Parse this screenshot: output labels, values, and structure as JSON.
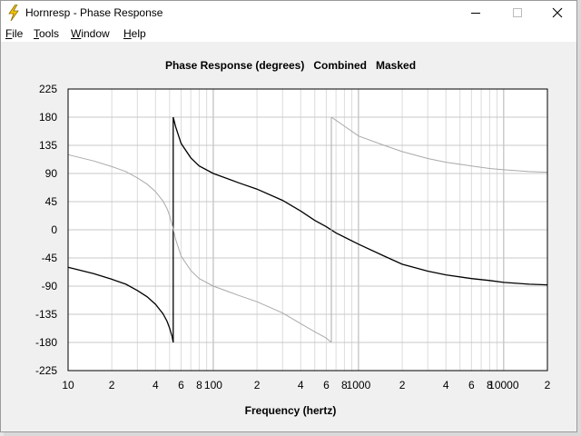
{
  "window": {
    "title": "Hornresp - Phase Response",
    "controls": [
      "minimize",
      "maximize",
      "close"
    ]
  },
  "menu": [
    {
      "label_ul": "F",
      "label_rest": "ile"
    },
    {
      "label_ul": "T",
      "label_rest": "ools"
    },
    {
      "label_ul": "W",
      "label_rest": "indow"
    },
    {
      "label_ul": "H",
      "label_rest": "elp"
    }
  ],
  "chart": {
    "title": "Phase Response (degrees)   Combined   Masked",
    "xlabel": "Frequency (hertz)"
  },
  "chart_data": {
    "type": "line",
    "title": "Phase Response (degrees)   Combined   Masked",
    "xlabel": "Frequency (hertz)",
    "ylabel": "",
    "x_scale": "log",
    "xlim": [
      10,
      20000
    ],
    "ylim": [
      -225,
      225
    ],
    "grid": true,
    "x_tick_labels": [
      {
        "value": 10,
        "label": "10"
      },
      {
        "value": 20,
        "label": "2"
      },
      {
        "value": 40,
        "label": "4"
      },
      {
        "value": 60,
        "label": "6"
      },
      {
        "value": 80,
        "label": "8"
      },
      {
        "value": 100,
        "label": "100"
      },
      {
        "value": 200,
        "label": "2"
      },
      {
        "value": 400,
        "label": "4"
      },
      {
        "value": 600,
        "label": "6"
      },
      {
        "value": 800,
        "label": "8"
      },
      {
        "value": 1000,
        "label": "1000"
      },
      {
        "value": 2000,
        "label": "2"
      },
      {
        "value": 4000,
        "label": "4"
      },
      {
        "value": 6000,
        "label": "6"
      },
      {
        "value": 8000,
        "label": "8"
      },
      {
        "value": 10000,
        "label": "10000"
      },
      {
        "value": 20000,
        "label": "2"
      }
    ],
    "y_ticks": [
      225,
      180,
      135,
      90,
      45,
      0,
      -45,
      -90,
      -135,
      -180,
      -225
    ],
    "series": [
      {
        "color": "#000000",
        "segments": [
          [
            [
              10,
              -60
            ],
            [
              15,
              -70
            ],
            [
              20,
              -79
            ],
            [
              25,
              -87
            ],
            [
              30,
              -97
            ],
            [
              35,
              -107
            ],
            [
              40,
              -119
            ],
            [
              45,
              -134
            ],
            [
              48,
              -146
            ],
            [
              50,
              -157
            ],
            [
              52,
              -170
            ],
            [
              53,
              -180
            ]
          ],
          [
            [
              53,
              -180
            ],
            [
              53,
              180
            ]
          ],
          [
            [
              53,
              180
            ],
            [
              55,
              165
            ],
            [
              60,
              138
            ],
            [
              70,
              115
            ],
            [
              80,
              102
            ],
            [
              100,
              90
            ],
            [
              150,
              75
            ],
            [
              200,
              65
            ],
            [
              300,
              47
            ],
            [
              400,
              30
            ],
            [
              500,
              15
            ],
            [
              600,
              5
            ],
            [
              700,
              -5
            ],
            [
              1000,
              -23
            ],
            [
              1500,
              -42
            ],
            [
              2000,
              -55
            ],
            [
              3000,
              -66
            ],
            [
              4000,
              -72
            ],
            [
              6000,
              -78
            ],
            [
              8000,
              -81
            ],
            [
              10000,
              -84
            ],
            [
              15000,
              -87
            ],
            [
              20000,
              -88
            ]
          ]
        ]
      },
      {
        "color": "#aaaaaa",
        "segments": [
          [
            [
              10,
              120
            ],
            [
              15,
              110
            ],
            [
              20,
              101
            ],
            [
              25,
              93
            ],
            [
              30,
              83
            ],
            [
              35,
              73
            ],
            [
              40,
              61
            ],
            [
              45,
              46
            ],
            [
              48,
              34
            ],
            [
              50,
              23
            ],
            [
              53,
              2
            ],
            [
              55,
              -15
            ],
            [
              60,
              -42
            ],
            [
              70,
              -65
            ],
            [
              80,
              -78
            ],
            [
              100,
              -90
            ],
            [
              150,
              -105
            ],
            [
              200,
              -115
            ],
            [
              300,
              -133
            ],
            [
              400,
              -150
            ],
            [
              500,
              -163
            ],
            [
              600,
              -173
            ],
            [
              650,
              -180
            ]
          ],
          [
            [
              650,
              -180
            ],
            [
              650,
              180
            ]
          ],
          [
            [
              650,
              180
            ],
            [
              700,
              175
            ],
            [
              1000,
              150
            ],
            [
              1500,
              135
            ],
            [
              2000,
              125
            ],
            [
              3000,
              114
            ],
            [
              4000,
              108
            ],
            [
              6000,
              102
            ],
            [
              8000,
              98
            ],
            [
              10000,
              96
            ],
            [
              15000,
              93
            ],
            [
              20000,
              92
            ]
          ]
        ]
      }
    ]
  }
}
